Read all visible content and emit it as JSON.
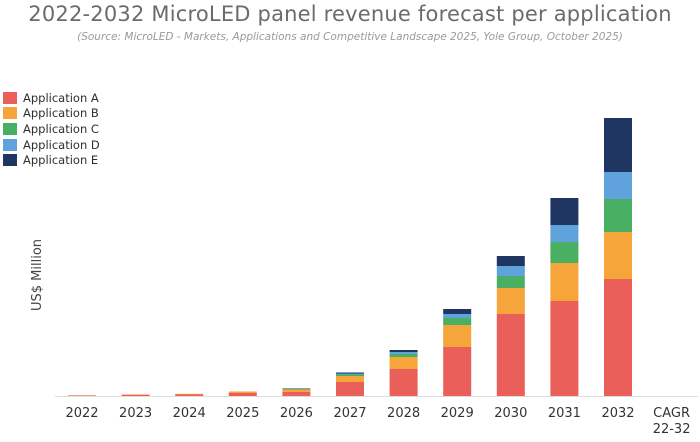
{
  "chart_data": {
    "type": "bar",
    "stacked": true,
    "title": "2022-2032 MicroLED panel revenue forecast per application",
    "subtitle": "(Source: MicroLED - Markets, Applications and Competitive Landscape 2025, Yole Group, October 2025)",
    "xlabel": "",
    "ylabel": "US$ Million",
    "categories": [
      "2022",
      "2023",
      "2024",
      "2025",
      "2026",
      "2027",
      "2028",
      "2029",
      "2030",
      "2031",
      "2032"
    ],
    "extra_category_lines": [
      "CAGR",
      "22-32"
    ],
    "ylim": [
      0,
      290
    ],
    "legend_position": "top-left",
    "series": [
      {
        "name": "Application A",
        "color": "#eb5f5a",
        "values": [
          0.5,
          1.2,
          1.5,
          3,
          4,
          14,
          27,
          49,
          82,
          95,
          117
        ]
      },
      {
        "name": "Application B",
        "color": "#f6a53a",
        "values": [
          0.2,
          0.5,
          0.7,
          1.5,
          2.5,
          6,
          12,
          22,
          26,
          38,
          47
        ]
      },
      {
        "name": "Application C",
        "color": "#49af63",
        "values": [
          0,
          0,
          0,
          0,
          0.5,
          1.5,
          3,
          7,
          12,
          21,
          33
        ]
      },
      {
        "name": "Application D",
        "color": "#5fa2dc",
        "values": [
          0,
          0,
          0,
          0,
          0,
          1,
          2,
          4,
          10,
          17,
          27
        ]
      },
      {
        "name": "Application E",
        "color": "#1f3663",
        "values": [
          0,
          0,
          0,
          0,
          0.5,
          1,
          2,
          5,
          10,
          27,
          54
        ]
      }
    ]
  }
}
